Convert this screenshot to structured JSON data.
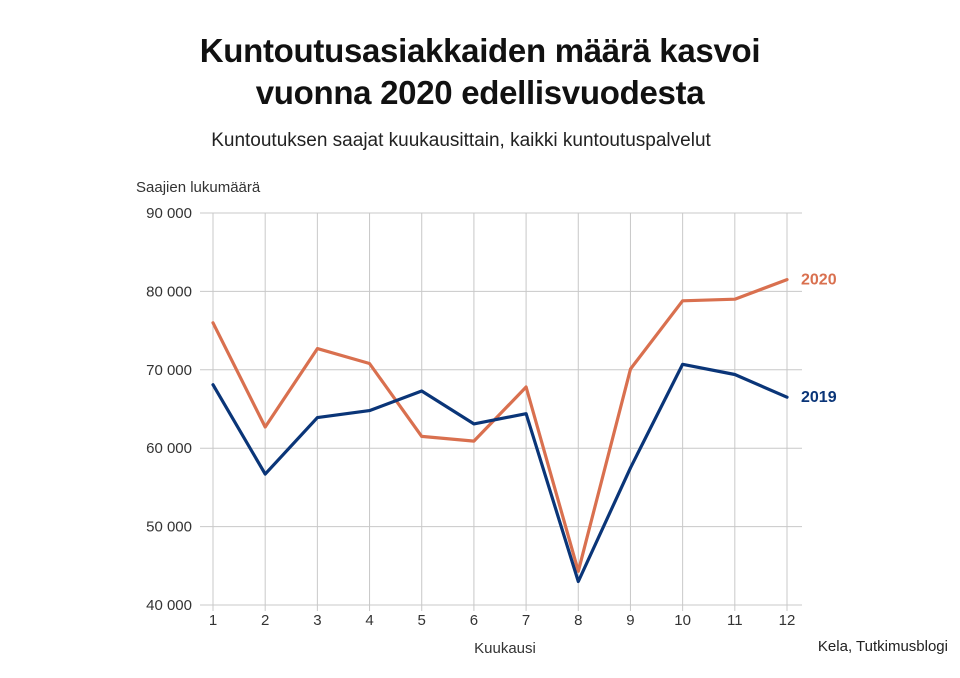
{
  "title_line1": "Kuntoutusasiakkaiden määrä kasvoi",
  "title_line2": "vuonna 2020 edellisvuodesta",
  "subtitle": "Kuntoutuksen saajat kuukausittain, kaikki kuntoutuspalvelut",
  "source": "Kela, Tutkimusblogi",
  "colors": {
    "series_2019": "#0a3578",
    "series_2020": "#d9704f",
    "grid": "#c8c8c8",
    "axis_text": "#333333"
  },
  "chart_data": {
    "type": "line",
    "ylabel": "Saajien lukumäärä",
    "xlabel": "Kuukausi",
    "x": [
      1,
      2,
      3,
      4,
      5,
      6,
      7,
      8,
      9,
      10,
      11,
      12
    ],
    "x_tick_labels": [
      "1",
      "2",
      "3",
      "4",
      "5",
      "6",
      "7",
      "8",
      "9",
      "10",
      "11",
      "12"
    ],
    "ylim": [
      40000,
      90000
    ],
    "y_ticks": [
      40000,
      50000,
      60000,
      70000,
      80000,
      90000
    ],
    "y_tick_labels": [
      "40 000",
      "50 000",
      "60 000",
      "70 000",
      "80 000",
      "90 000"
    ],
    "grid": true,
    "series": [
      {
        "name": "2020",
        "color": "#d9704f",
        "values": [
          76000,
          62700,
          72700,
          70800,
          61500,
          60900,
          67800,
          44300,
          70100,
          78800,
          79000,
          81500
        ]
      },
      {
        "name": "2019",
        "color": "#0a3578",
        "values": [
          68100,
          56700,
          63900,
          64800,
          67300,
          63100,
          64400,
          43000,
          57500,
          70700,
          69400,
          66500
        ]
      }
    ]
  }
}
